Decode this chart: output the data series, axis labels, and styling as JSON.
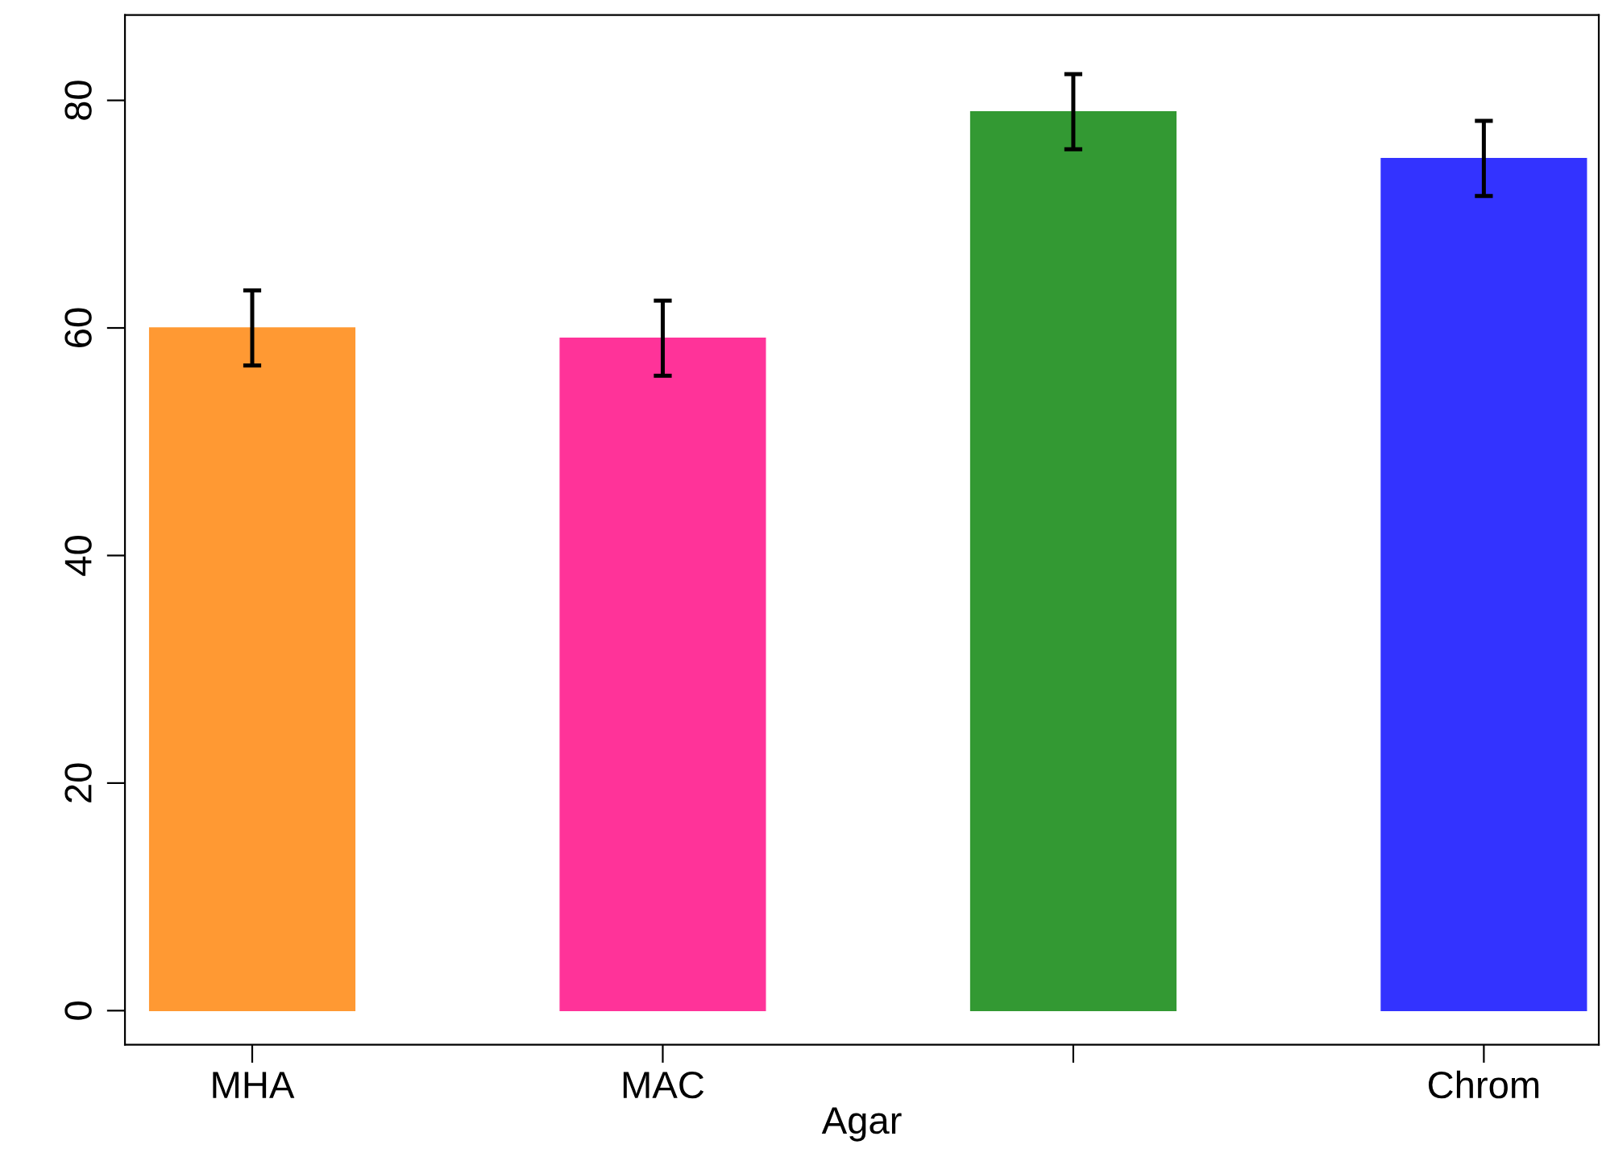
{
  "chart_data": {
    "type": "bar",
    "xlabel": "Agar",
    "categories": [
      "MHA",
      "MAC",
      null,
      "Chrom"
    ],
    "values": [
      60,
      59.1,
      79,
      74.9
    ],
    "errors": [
      3.3,
      3.3,
      3.3,
      3.3
    ],
    "colors": [
      "#ff9933",
      "#ff3399",
      "#339933",
      "#3333ff"
    ],
    "ylim": [
      -3,
      87.5
    ],
    "yticks": [
      0,
      20,
      40,
      60,
      80
    ],
    "grid": false,
    "legend": false
  }
}
